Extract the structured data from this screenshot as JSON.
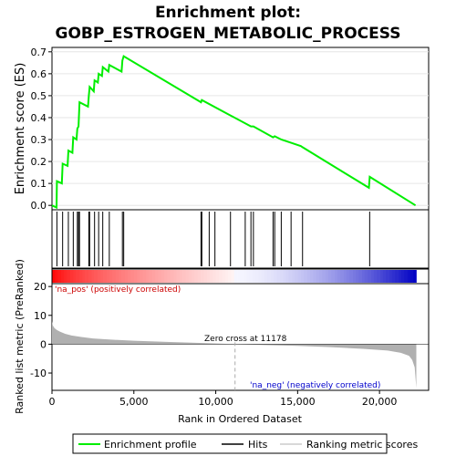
{
  "chart_data": {
    "type": "line",
    "title_line1": "Enrichment plot:",
    "title_line2": "GOBP_ESTROGEN_METABOLIC_PROCESS",
    "es_panel": {
      "ylabel": "Enrichment score (ES)",
      "ylim": [
        -0.02,
        0.72
      ],
      "yticks": [
        "0.0",
        "0.1",
        "0.2",
        "0.3",
        "0.4",
        "0.5",
        "0.6",
        "0.7"
      ],
      "ytick_values": [
        0.0,
        0.1,
        0.2,
        0.3,
        0.4,
        0.5,
        0.6,
        0.7
      ],
      "line_color": "#00ee00",
      "profile": [
        [
          0,
          0.0
        ],
        [
          280,
          -0.01
        ],
        [
          300,
          0.11
        ],
        [
          600,
          0.1
        ],
        [
          650,
          0.19
        ],
        [
          950,
          0.18
        ],
        [
          1000,
          0.25
        ],
        [
          1250,
          0.24
        ],
        [
          1300,
          0.31
        ],
        [
          1500,
          0.3
        ],
        [
          1550,
          0.35
        ],
        [
          1620,
          0.36
        ],
        [
          1680,
          0.47
        ],
        [
          2200,
          0.45
        ],
        [
          2250,
          0.5
        ],
        [
          2300,
          0.54
        ],
        [
          2550,
          0.52
        ],
        [
          2600,
          0.57
        ],
        [
          2800,
          0.56
        ],
        [
          2850,
          0.6
        ],
        [
          3050,
          0.59
        ],
        [
          3100,
          0.63
        ],
        [
          3450,
          0.61
        ],
        [
          3500,
          0.64
        ],
        [
          4250,
          0.61
        ],
        [
          4300,
          0.66
        ],
        [
          4380,
          0.68
        ],
        [
          9100,
          0.47
        ],
        [
          9150,
          0.48
        ],
        [
          10900,
          0.41
        ],
        [
          12150,
          0.36
        ],
        [
          12300,
          0.36
        ],
        [
          13500,
          0.31
        ],
        [
          13600,
          0.315
        ],
        [
          14000,
          0.3
        ],
        [
          14600,
          0.285
        ],
        [
          15200,
          0.27
        ],
        [
          15300,
          0.265
        ],
        [
          19350,
          0.08
        ],
        [
          19400,
          0.13
        ],
        [
          22200,
          0.0
        ]
      ]
    },
    "hits": [
      300,
      650,
      1000,
      1300,
      1550,
      1620,
      1680,
      2250,
      2300,
      2600,
      2850,
      3100,
      3500,
      4300,
      4380,
      9100,
      9150,
      9600,
      9950,
      10900,
      11800,
      12150,
      12300,
      13500,
      13600,
      14000,
      14600,
      15300,
      19400
    ],
    "rank_panel": {
      "ylabel": "Ranked list metric (PreRanked)",
      "xlabel": "Rank in Ordered Dataset",
      "ylim": [
        -16,
        21
      ],
      "yticks": [
        "20",
        "10",
        "0",
        "-10"
      ],
      "ytick_values": [
        20,
        10,
        0,
        -10
      ],
      "xlim": [
        0,
        23000
      ],
      "xticks": [
        "0",
        "5,000",
        "10,000",
        "15,000",
        "20,000"
      ],
      "xtick_values": [
        0,
        5000,
        10000,
        15000,
        20000
      ],
      "zero_cross_label": "Zero cross at 11178",
      "zero_cross_rank": 11178,
      "pos_label": "'na_pos' (positively correlated)",
      "neg_label": "'na_neg' (negatively correlated)",
      "metric_curve": [
        [
          0,
          8.0
        ],
        [
          50,
          6.5
        ],
        [
          150,
          5.6
        ],
        [
          300,
          4.9
        ],
        [
          500,
          4.3
        ],
        [
          800,
          3.6
        ],
        [
          1200,
          3.0
        ],
        [
          1800,
          2.5
        ],
        [
          2500,
          2.0
        ],
        [
          3500,
          1.6
        ],
        [
          5000,
          1.2
        ],
        [
          7000,
          0.8
        ],
        [
          9000,
          0.45
        ],
        [
          11178,
          0.0
        ],
        [
          13000,
          -0.3
        ],
        [
          15000,
          -0.6
        ],
        [
          17000,
          -1.0
        ],
        [
          19000,
          -1.6
        ],
        [
          20500,
          -2.2
        ],
        [
          21300,
          -3.0
        ],
        [
          21800,
          -4.0
        ],
        [
          22000,
          -5.5
        ],
        [
          22150,
          -8.0
        ],
        [
          22250,
          -15.2
        ]
      ],
      "total_ranks": 22250
    },
    "legend": {
      "items": [
        "Enrichment profile",
        "Hits",
        "Ranking metric scores"
      ],
      "colors": [
        "#00ee00",
        "#000000",
        "#cccccc"
      ]
    }
  }
}
